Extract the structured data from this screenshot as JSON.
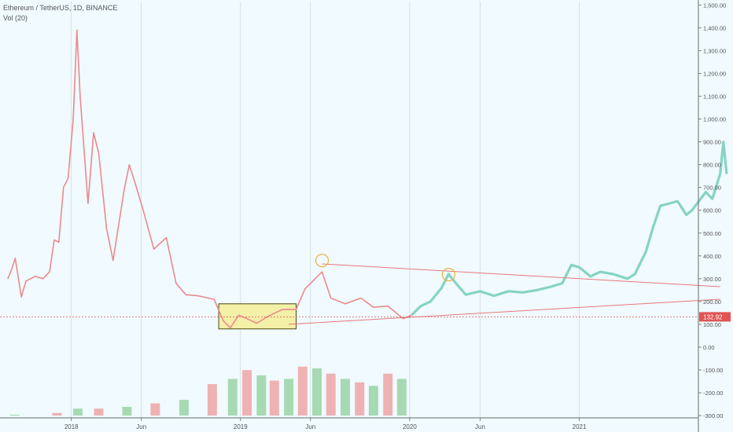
{
  "header": {
    "symbol_line": "Ethereum / TetherUS, 1D, BINANCE",
    "indicator_line": "Vol (20)"
  },
  "colors": {
    "background": "#f0faff",
    "price_history": "#ec8a8a",
    "projection": "#86d3c4",
    "trendline": "#e87878",
    "box_border": "#4a4a10",
    "box_fill": "#f3f0a8",
    "circle": "#f0b040",
    "volume_up": "#8fcf9a",
    "volume_down": "#ef9a9a",
    "price_label_bg": "#e05454"
  },
  "chart_data": {
    "type": "line",
    "x_axis": {
      "ticks": [
        "2018",
        "Jun",
        "2019",
        "Jun",
        "2020",
        "Jun",
        "2021"
      ],
      "tick_dates": [
        "2018-01-01",
        "2018-06-01",
        "2019-01-01",
        "2019-06-01",
        "2020-01-01",
        "2020-06-01",
        "2021-01-01"
      ],
      "xlim": [
        "2017-08-17",
        "2021-09-15"
      ]
    },
    "y_axis": {
      "ticks": [
        1500,
        1400,
        1300,
        1200,
        1100,
        1000,
        900,
        800,
        700,
        600,
        500,
        400,
        300,
        200,
        100,
        0,
        -100,
        -200,
        -300
      ],
      "tick_labels": [
        "1,500.00",
        "1,400.00",
        "1,300.00",
        "1,200.00",
        "1,100.00",
        "1,000.00",
        "900.00",
        "800.00",
        "700.00",
        "600.00",
        "500.00",
        "400.00",
        "300.00",
        "200.00",
        "100.00",
        "0.00",
        "-100.00",
        "-200.00",
        "-300.00"
      ],
      "ylim": [
        -310,
        1515
      ]
    },
    "current_price": {
      "value": 132.92,
      "label": "132.92"
    },
    "series": [
      {
        "points": [
          {
            "x": "2017-08-17",
            "y": 300
          },
          {
            "x": "2017-08-25",
            "y": 340
          },
          {
            "x": "2017-09-02",
            "y": 390
          },
          {
            "x": "2017-09-15",
            "y": 220
          },
          {
            "x": "2017-09-25",
            "y": 290
          },
          {
            "x": "2017-10-15",
            "y": 310
          },
          {
            "x": "2017-11-01",
            "y": 300
          },
          {
            "x": "2017-11-15",
            "y": 330
          },
          {
            "x": "2017-11-25",
            "y": 470
          },
          {
            "x": "2017-12-05",
            "y": 460
          },
          {
            "x": "2017-12-15",
            "y": 700
          },
          {
            "x": "2017-12-25",
            "y": 740
          },
          {
            "x": "2018-01-05",
            "y": 1000
          },
          {
            "x": "2018-01-13",
            "y": 1390
          },
          {
            "x": "2018-01-20",
            "y": 1100
          },
          {
            "x": "2018-02-06",
            "y": 630
          },
          {
            "x": "2018-02-18",
            "y": 940
          },
          {
            "x": "2018-03-01",
            "y": 850
          },
          {
            "x": "2018-03-18",
            "y": 520
          },
          {
            "x": "2018-04-01",
            "y": 380
          },
          {
            "x": "2018-04-25",
            "y": 690
          },
          {
            "x": "2018-05-06",
            "y": 800
          },
          {
            "x": "2018-05-20",
            "y": 710
          },
          {
            "x": "2018-06-05",
            "y": 600
          },
          {
            "x": "2018-06-28",
            "y": 430
          },
          {
            "x": "2018-07-25",
            "y": 480
          },
          {
            "x": "2018-08-15",
            "y": 280
          },
          {
            "x": "2018-09-05",
            "y": 230
          },
          {
            "x": "2018-10-01",
            "y": 225
          },
          {
            "x": "2018-11-05",
            "y": 210
          },
          {
            "x": "2018-11-25",
            "y": 115
          },
          {
            "x": "2018-12-10",
            "y": 85
          },
          {
            "x": "2018-12-28",
            "y": 140
          },
          {
            "x": "2019-01-15",
            "y": 125
          },
          {
            "x": "2019-02-05",
            "y": 105
          },
          {
            "x": "2019-03-01",
            "y": 135
          },
          {
            "x": "2019-04-01",
            "y": 165
          },
          {
            "x": "2019-05-01",
            "y": 165
          },
          {
            "x": "2019-05-20",
            "y": 255
          },
          {
            "x": "2019-06-26",
            "y": 330
          },
          {
            "x": "2019-07-15",
            "y": 215
          },
          {
            "x": "2019-08-15",
            "y": 190
          },
          {
            "x": "2019-09-18",
            "y": 215
          },
          {
            "x": "2019-10-15",
            "y": 175
          },
          {
            "x": "2019-11-15",
            "y": 180
          },
          {
            "x": "2019-12-18",
            "y": 125
          },
          {
            "x": "2020-01-05",
            "y": 140
          }
        ]
      },
      {
        "points": [
          {
            "x": "2020-01-05",
            "y": 140
          },
          {
            "x": "2020-01-25",
            "y": 180
          },
          {
            "x": "2020-02-15",
            "y": 200
          },
          {
            "x": "2020-03-10",
            "y": 260
          },
          {
            "x": "2020-03-25",
            "y": 320
          },
          {
            "x": "2020-04-10",
            "y": 280
          },
          {
            "x": "2020-05-01",
            "y": 230
          },
          {
            "x": "2020-06-01",
            "y": 245
          },
          {
            "x": "2020-07-01",
            "y": 225
          },
          {
            "x": "2020-08-01",
            "y": 245
          },
          {
            "x": "2020-09-01",
            "y": 240
          },
          {
            "x": "2020-10-01",
            "y": 250
          },
          {
            "x": "2020-11-01",
            "y": 265
          },
          {
            "x": "2020-11-25",
            "y": 280
          },
          {
            "x": "2020-12-15",
            "y": 360
          },
          {
            "x": "2021-01-01",
            "y": 350
          },
          {
            "x": "2021-01-25",
            "y": 310
          },
          {
            "x": "2021-02-15",
            "y": 330
          },
          {
            "x": "2021-03-15",
            "y": 320
          },
          {
            "x": "2021-04-15",
            "y": 300
          },
          {
            "x": "2021-05-01",
            "y": 320
          },
          {
            "x": "2021-05-25",
            "y": 420
          },
          {
            "x": "2021-06-10",
            "y": 530
          },
          {
            "x": "2021-06-25",
            "y": 620
          },
          {
            "x": "2021-07-15",
            "y": 630
          },
          {
            "x": "2021-08-01",
            "y": 640
          },
          {
            "x": "2021-08-20",
            "y": 580
          },
          {
            "x": "2021-09-01",
            "y": 600
          },
          {
            "x": "2021-10-01",
            "y": 680
          },
          {
            "x": "2021-10-15",
            "y": 650
          },
          {
            "x": "2021-11-01",
            "y": 760
          },
          {
            "x": "2021-11-08",
            "y": 900
          },
          {
            "x": "2021-11-15",
            "y": 760
          }
        ]
      }
    ],
    "volume": {
      "dates": [
        "2017-09-01",
        "2017-12-01",
        "2018-01-15",
        "2018-03-01",
        "2018-05-01",
        "2018-07-01",
        "2018-09-01",
        "2018-11-01",
        "2018-12-15",
        "2019-01-15",
        "2019-02-15",
        "2019-03-15",
        "2019-04-15",
        "2019-05-15",
        "2019-06-15",
        "2019-07-15",
        "2019-08-15",
        "2019-09-15",
        "2019-10-15",
        "2019-11-15",
        "2019-12-15"
      ],
      "values": [
        5,
        15,
        40,
        40,
        50,
        70,
        90,
        180,
        210,
        260,
        230,
        200,
        210,
        280,
        270,
        240,
        210,
        190,
        170,
        240,
        210
      ]
    },
    "annotations": [
      {
        "type": "trendline",
        "from": {
          "x": "2019-06-26",
          "y": 365
        },
        "to": {
          "x": "2021-11-01",
          "y": 265
        }
      },
      {
        "type": "trendline",
        "from": {
          "x": "2019-04-15",
          "y": 100
        },
        "to": {
          "x": "2021-11-01",
          "y": 210
        }
      },
      {
        "type": "rectangle",
        "from": {
          "x": "2018-11-15",
          "y": 80
        },
        "to": {
          "x": "2019-05-01",
          "y": 190
        }
      },
      {
        "type": "circle",
        "at": {
          "x": "2019-06-26",
          "y": 380
        }
      },
      {
        "type": "circle",
        "at": {
          "x": "2020-03-25",
          "y": 318
        }
      }
    ]
  }
}
